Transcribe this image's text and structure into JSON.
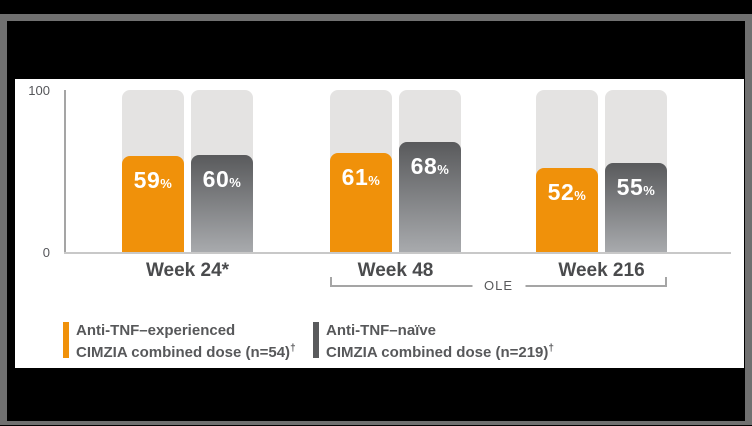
{
  "window": {
    "frame_color": "#707070",
    "background_color": "#000000",
    "panel_color": "#FFFFFF"
  },
  "chart": {
    "y_axis": {
      "max_label": "100",
      "min_label": "0"
    },
    "ole_label": "OLE",
    "percent_sign": "%"
  },
  "legend": {
    "items": [
      {
        "line1": "Anti-TNF–experienced",
        "line2": "CIMZIA combined dose (n=54)",
        "sup": "†",
        "marker_color": "#F0910A"
      },
      {
        "line1": "Anti-TNF–naïve",
        "line2": "CIMZIA combined dose (n=219)",
        "sup": "†",
        "marker_color": "#595A5C"
      }
    ]
  },
  "chart_data": {
    "type": "bar",
    "title": "",
    "categories": [
      "Week 24*",
      "Week 48",
      "Week 216"
    ],
    "series": [
      {
        "name": "Anti-TNF–experienced CIMZIA combined dose (n=54)†",
        "values": [
          59,
          61,
          52
        ],
        "color": "#F0910A"
      },
      {
        "name": "Anti-TNF–naïve CIMZIA combined dose (n=219)†",
        "values": [
          60,
          68,
          55
        ],
        "gradient": [
          "#595A5C",
          "#A8AAAD"
        ]
      }
    ],
    "ylim": [
      0,
      100
    ],
    "y_ticks": [
      0,
      100
    ],
    "value_labels_suffix": "%",
    "track_color": "#E4E3E2",
    "grid": false,
    "legend_position": "bottom",
    "annotations": [
      {
        "label": "OLE",
        "type": "bracket",
        "spans_categories": [
          "Week 48",
          "Week 216"
        ]
      }
    ]
  }
}
